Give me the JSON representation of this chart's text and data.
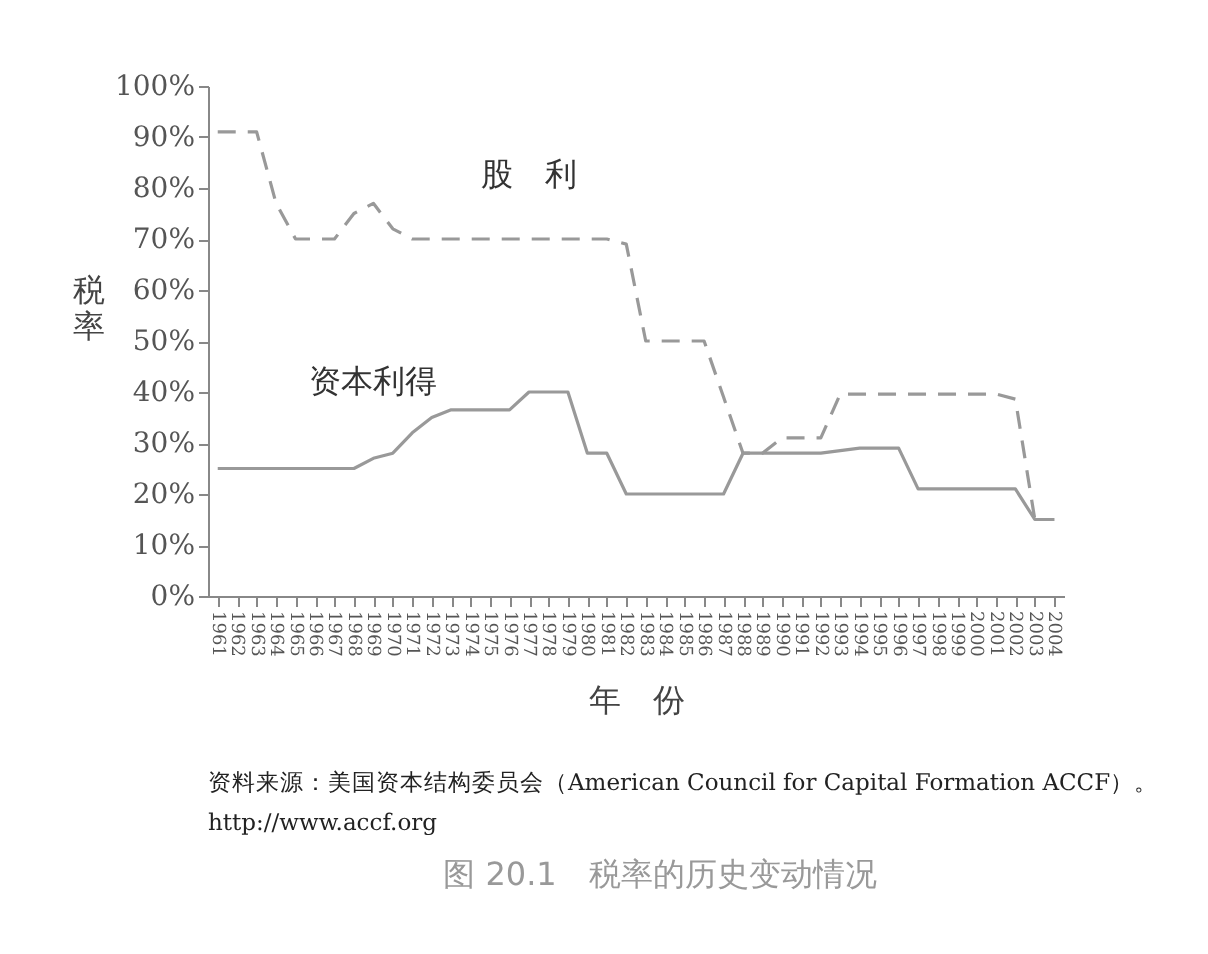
{
  "chart_data": {
    "type": "line",
    "title": "图 20.1　税率的历史变动情况",
    "xlabel": "年　份",
    "ylabel": "税率",
    "categories": [
      "1961",
      "1962",
      "1963",
      "1964",
      "1965",
      "1966",
      "1967",
      "1968",
      "1969",
      "1970",
      "1971",
      "1972",
      "1973",
      "1974",
      "1975",
      "1976",
      "1977",
      "1978",
      "1979",
      "1980",
      "1981",
      "1982",
      "1983",
      "1984",
      "1985",
      "1986",
      "1987",
      "1988",
      "1989",
      "1990",
      "1991",
      "1992",
      "1993",
      "1994",
      "1995",
      "1996",
      "1997",
      "1998",
      "1999",
      "2000",
      "2001",
      "2002",
      "2003",
      "2004"
    ],
    "series": [
      {
        "name": "股　利",
        "color": "#999999",
        "line_style": "dashed",
        "values": [
          91,
          91,
          91,
          77,
          70,
          70,
          70,
          75,
          77,
          72,
          70,
          70,
          70,
          70,
          70,
          70,
          70,
          70,
          70,
          70,
          70,
          69,
          50,
          50,
          50,
          50,
          39,
          28,
          28,
          31,
          31,
          31,
          39.6,
          39.6,
          39.6,
          39.6,
          39.6,
          39.6,
          39.6,
          39.6,
          39.6,
          38.6,
          15,
          15
        ]
      },
      {
        "name": "资本利得",
        "color": "#999999",
        "line_style": "solid",
        "values": [
          25,
          25,
          25,
          25,
          25,
          25,
          25,
          25,
          27,
          28,
          32,
          35,
          36.5,
          36.5,
          36.5,
          36.5,
          40,
          40,
          40,
          28,
          28,
          20,
          20,
          20,
          20,
          20,
          20,
          28,
          28,
          28,
          28,
          28,
          28.5,
          29,
          29,
          29,
          21,
          21,
          21,
          21,
          21,
          21,
          15,
          15
        ]
      }
    ],
    "ylim": [
      0,
      100
    ],
    "yticks": [
      {
        "value": 0,
        "label": "0%"
      },
      {
        "value": 10,
        "label": "10%"
      },
      {
        "value": 20,
        "label": "20%"
      },
      {
        "value": 30,
        "label": "30%"
      },
      {
        "value": 40,
        "label": "40%"
      },
      {
        "value": 50,
        "label": "50%"
      },
      {
        "value": 60,
        "label": "60%"
      },
      {
        "value": 70,
        "label": "70%"
      },
      {
        "value": 80,
        "label": "80%"
      },
      {
        "value": 90,
        "label": "90%"
      },
      {
        "value": 100,
        "label": "100%"
      }
    ],
    "grid": false,
    "legend": false,
    "marker": "none",
    "annotations": [
      "资料来源：美国资本结构委员会（American Council for Capital Formation ACCF）。",
      "http://www.accf.org"
    ]
  }
}
